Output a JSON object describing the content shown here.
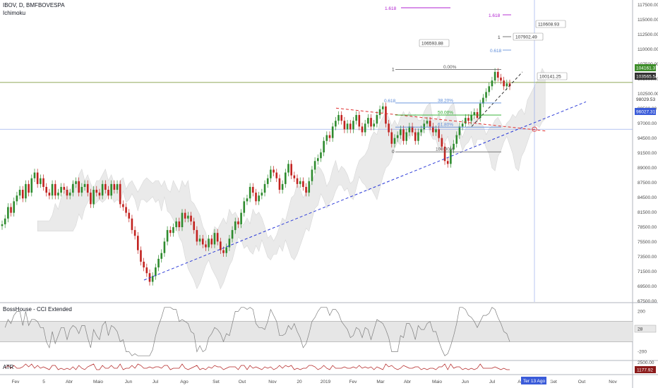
{
  "header": {
    "symbol": "IBOV, D, BMFBOVESPA",
    "indicator": "Ichimoku"
  },
  "panes": {
    "cci_label": "BossHouse - CCI Extended",
    "atr_label": "ATR"
  },
  "colors": {
    "up": "#2e8b2e",
    "down": "#c2221f",
    "cloud": "#d9d9d9",
    "trend_blue": "#2b3ad8",
    "trend_red": "#e03030",
    "fib_blue": "#5a8ad8",
    "fib_green": "#22aa22",
    "fib_purple": "#b020d0",
    "price_tag_green": "#3e8e2b",
    "price_tag_dark": "#333333",
    "price_tag_blue": "#3a5bd9",
    "cci_line": "#7f7f7f",
    "atr_line": "#b22222",
    "atr_tag": "#8b1a1a"
  },
  "chart_data": [
    {
      "type": "line",
      "title": "IBOV, D, BMFBOVESPA",
      "xlabel": "",
      "ylabel": "",
      "x_tick_labels": [
        "Fev",
        "5",
        "Abr",
        "Maio",
        "Jun",
        "Jul",
        "Ago",
        "Set",
        "Out",
        "Nov",
        "20",
        "2019",
        "Fev",
        "Mar",
        "Abr",
        "Maio",
        "Jun",
        "Jul",
        "Ago",
        "Set",
        "Out",
        "Nov"
      ],
      "y_tick_labels": [
        "117500.00",
        "115000.00",
        "112500.00",
        "110000.00",
        "107500.00",
        "105000.00",
        "102500.00",
        "99500.00",
        "97000.00",
        "94500.00",
        "91500.00",
        "89000.00",
        "87500.00",
        "84500.00",
        "81500.00",
        "78500.00",
        "75500.00",
        "73500.00",
        "71500.00",
        "69500.00",
        "67500.00"
      ],
      "ylim": [
        66000,
        118500
      ],
      "series": [
        {
          "values": [
            79500,
            80500,
            82500,
            81500,
            83500,
            84500,
            85500,
            84000,
            86500,
            85000,
            87500,
            88500,
            86500,
            87500,
            86000,
            85000,
            84500,
            86500,
            84500,
            85000,
            86000,
            85500,
            84500,
            85000,
            86500,
            87000,
            85000,
            86000,
            86500,
            85000,
            83000,
            85500,
            85000,
            84500,
            86500,
            85500,
            84500,
            86500,
            85500,
            86500,
            83000,
            82500,
            81500,
            80500,
            78500,
            77500,
            75000,
            73000,
            72000,
            71000,
            69500,
            70500,
            72000,
            73500,
            74500,
            76500,
            78500,
            78000,
            79000,
            80000,
            79000,
            81500,
            80500,
            81000,
            80000,
            78500,
            76500,
            77000,
            76000,
            75500,
            77000,
            76000,
            78000,
            76500,
            75000,
            74500,
            75500,
            77000,
            78500,
            80000,
            79500,
            81500,
            83500,
            84000,
            86000,
            85000,
            83500,
            84500,
            85000,
            86500,
            87500,
            89000,
            88500,
            87500,
            85500,
            86500,
            88500,
            90000,
            88000,
            87500,
            86500,
            87000,
            86000,
            85000,
            87000,
            89000,
            90500,
            91000,
            92000,
            94000,
            95000,
            94500,
            96500,
            97500,
            98500,
            97500,
            96000,
            97000,
            96000,
            97500,
            98500,
            96500,
            95500,
            97000,
            98000,
            96500,
            97000,
            98500,
            99500,
            100000,
            97000,
            95500,
            93500,
            94500,
            95000,
            96000,
            94000,
            95500,
            96500,
            95500,
            94000,
            95500,
            96000,
            97000,
            97500,
            96500,
            95500,
            96000,
            94500,
            93000,
            90500,
            90000,
            92500,
            93500,
            95000,
            96500,
            97000,
            98000,
            97500,
            98500,
            99000,
            98000,
            100500,
            101500,
            102500,
            103500,
            104500,
            106000,
            105000,
            104500,
            103500,
            104000,
            103500
          ]
        }
      ],
      "annotations": {
        "price_tags": [
          "104161.37",
          "103565.54",
          "98029.53",
          "96027.31",
          "100141.25"
        ],
        "fib_levels": [
          "1.618",
          "1.618",
          "1",
          "1",
          "0.618",
          "0.00%",
          "0.618",
          "38.20%",
          "50.00%",
          "61.80%",
          "0",
          "100.00%"
        ],
        "fib_values": [
          "106593.88",
          "110608.93",
          "107902.49"
        ]
      }
    },
    {
      "type": "line",
      "title": "BossHouse - CCI Extended",
      "y_tick_labels": [
        "200",
        "-200"
      ],
      "current_value": "28",
      "ylim": [
        -280,
        280
      ]
    },
    {
      "type": "line",
      "title": "ATR",
      "y_tick_labels": [
        "2500.00"
      ],
      "current_value": "1177.92"
    }
  ],
  "time_tag": "Ter 13 Ago '19"
}
